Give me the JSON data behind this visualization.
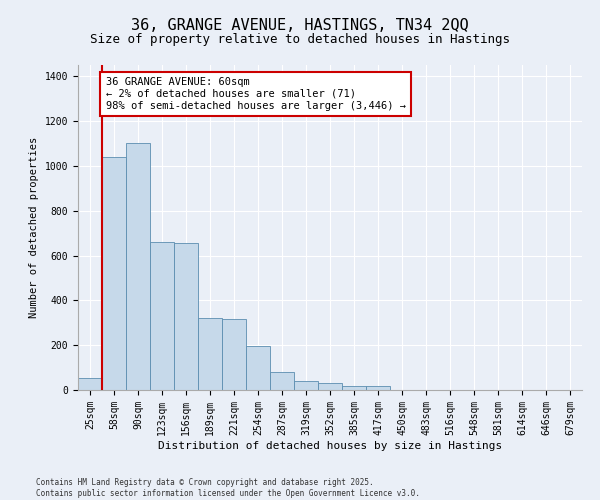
{
  "title_line1": "36, GRANGE AVENUE, HASTINGS, TN34 2QQ",
  "title_line2": "Size of property relative to detached houses in Hastings",
  "xlabel": "Distribution of detached houses by size in Hastings",
  "ylabel": "Number of detached properties",
  "bar_values": [
    55,
    1040,
    1100,
    660,
    655,
    320,
    318,
    195,
    80,
    40,
    30,
    20,
    18,
    0,
    0,
    0,
    0,
    0,
    0,
    0,
    0
  ],
  "bar_labels": [
    "25sqm",
    "58sqm",
    "90sqm",
    "123sqm",
    "156sqm",
    "189sqm",
    "221sqm",
    "254sqm",
    "287sqm",
    "319sqm",
    "352sqm",
    "385sqm",
    "417sqm",
    "450sqm",
    "483sqm",
    "516sqm",
    "548sqm",
    "581sqm",
    "614sqm",
    "646sqm",
    "679sqm"
  ],
  "n_bars": 21,
  "bar_color": "#c6d9ea",
  "bar_edgecolor": "#5b8db0",
  "vline_color": "#cc0000",
  "annotation_text": "36 GRANGE AVENUE: 60sqm\n← 2% of detached houses are smaller (71)\n98% of semi-detached houses are larger (3,446) →",
  "annotation_box_facecolor": "#ffffff",
  "annotation_box_edgecolor": "#cc0000",
  "ylim": [
    0,
    1450
  ],
  "yticks": [
    0,
    200,
    400,
    600,
    800,
    1000,
    1200,
    1400
  ],
  "footer_line1": "Contains HM Land Registry data © Crown copyright and database right 2025.",
  "footer_line2": "Contains public sector information licensed under the Open Government Licence v3.0.",
  "bg_color": "#eaeff7",
  "plot_bg_color": "#eaeff7",
  "grid_color": "#ffffff",
  "title_fontsize": 11,
  "subtitle_fontsize": 9,
  "xlabel_fontsize": 8,
  "ylabel_fontsize": 7.5,
  "tick_fontsize": 7,
  "annotation_fontsize": 7.5,
  "footer_fontsize": 5.5
}
